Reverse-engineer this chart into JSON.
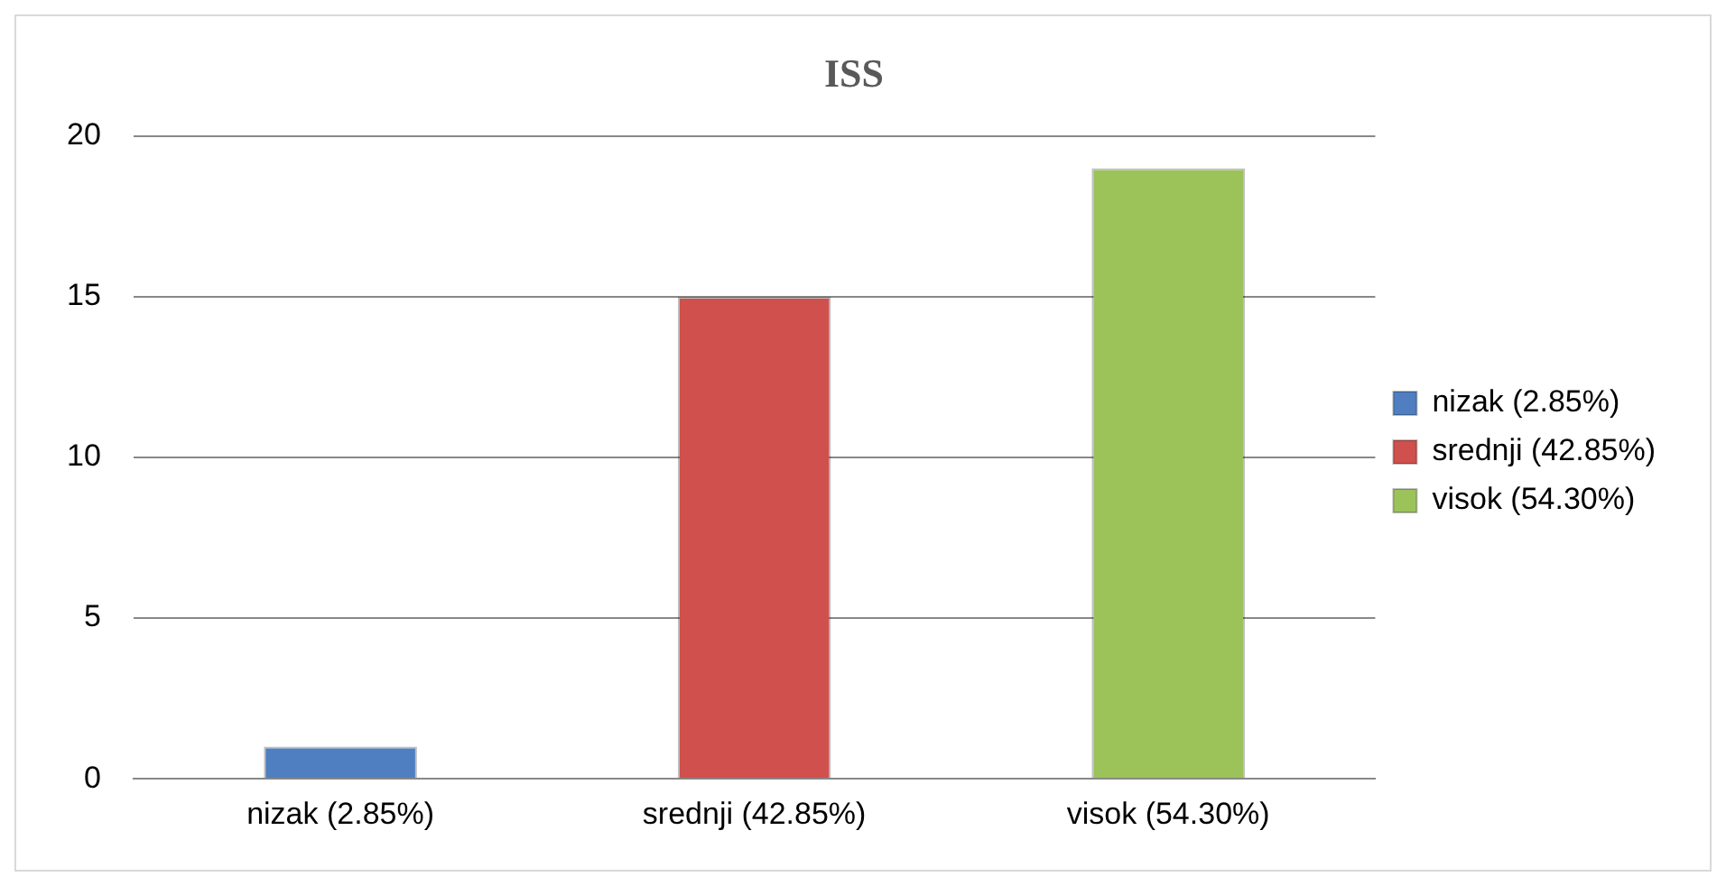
{
  "chart_data": {
    "type": "bar",
    "title": "ISS",
    "categories": [
      "nizak (2.85%)",
      "srednji (42.85%)",
      "visok (54.30%)"
    ],
    "series": [
      {
        "name": "nizak (2.85%)",
        "color": "#4f7fc0",
        "values": [
          1,
          null,
          null
        ]
      },
      {
        "name": "srednji (42.85%)",
        "color": "#cf504d",
        "values": [
          null,
          15,
          null
        ]
      },
      {
        "name": "visok (54.30%)",
        "color": "#9bc35a",
        "values": [
          null,
          null,
          19
        ]
      }
    ],
    "ylim": [
      0,
      20
    ],
    "yticks": [
      0,
      5,
      10,
      15,
      20
    ],
    "grid": "y",
    "legend": "right"
  }
}
